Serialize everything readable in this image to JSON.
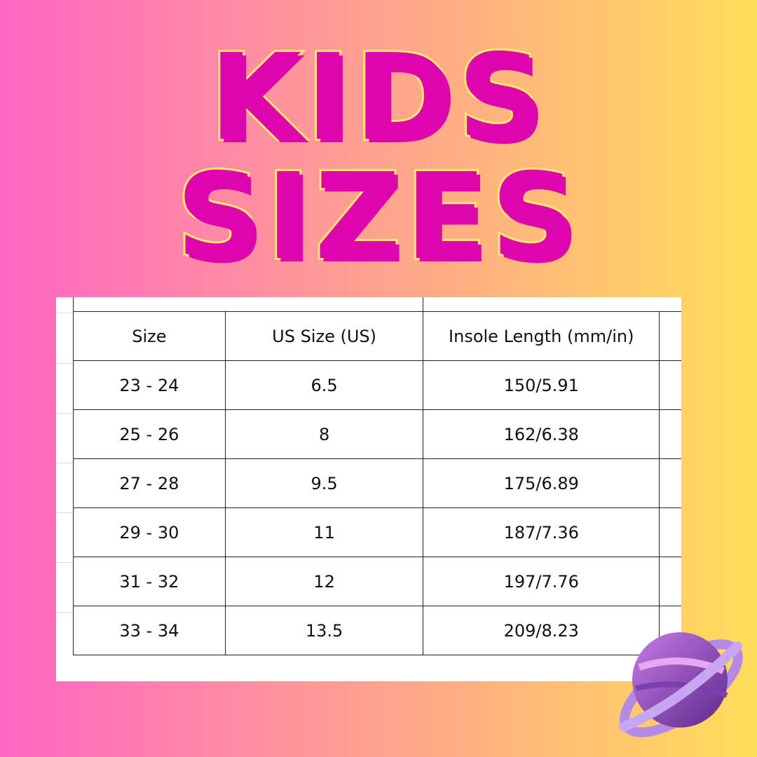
{
  "title": {
    "line1": "KIDS",
    "line2": "SIZES"
  },
  "table": {
    "headers": [
      "Size",
      "US Size (US)",
      "Insole Length (mm/in)",
      ""
    ],
    "rows": [
      [
        "23 - 24",
        "6.5",
        "150/5.91",
        ""
      ],
      [
        "25 - 26",
        "8",
        "162/6.38",
        ""
      ],
      [
        "27 - 28",
        "9.5",
        "175/6.89",
        ""
      ],
      [
        "29 - 30",
        "11",
        "187/7.36",
        ""
      ],
      [
        "31 - 32",
        "12",
        "197/7.76",
        ""
      ],
      [
        "33 - 34",
        "13.5",
        "209/8.23",
        ""
      ]
    ]
  },
  "colors": {
    "bg_left": "#ff66c4",
    "bg_right": "#ffde59",
    "title_fill": "#dd06ae",
    "title_outline": "#ffe96a",
    "planet": "#9b5fd0"
  },
  "decor": {
    "icon": "planet-icon"
  }
}
